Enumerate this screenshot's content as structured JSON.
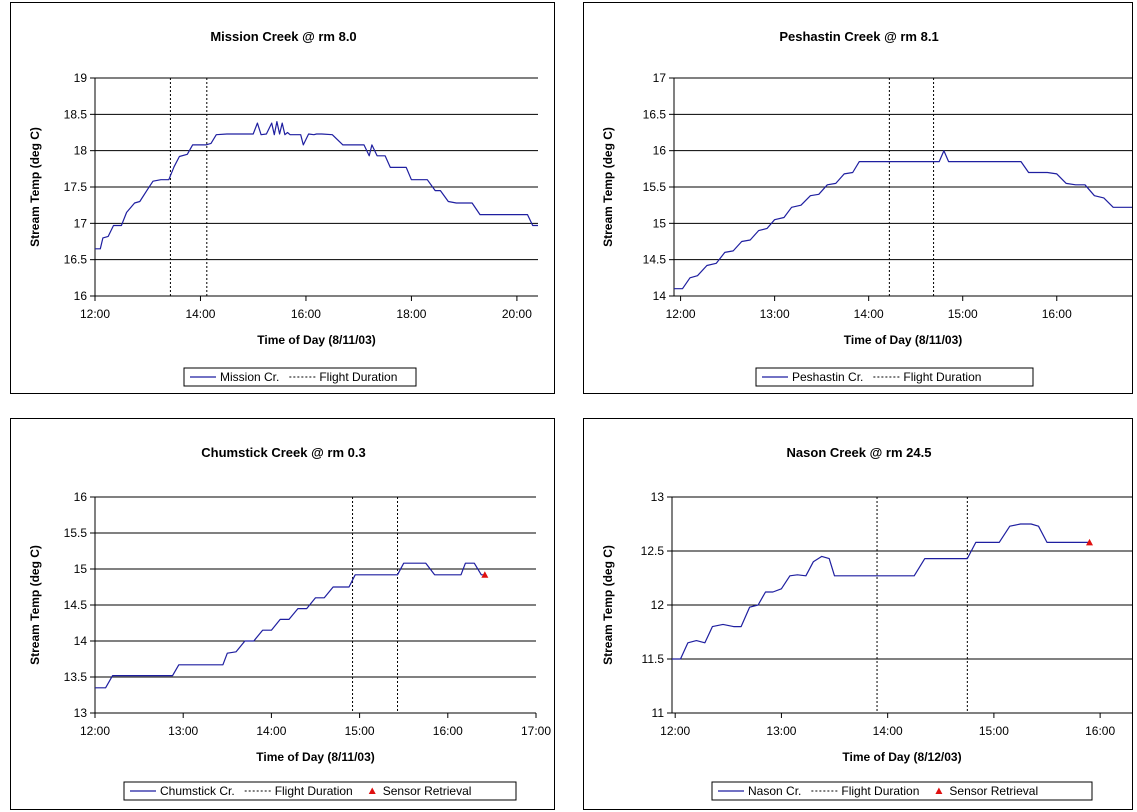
{
  "chart_data": [
    {
      "type": "line",
      "title": "Mission Creek @ rm 8.0",
      "xlabel": "Time of Day (8/11/03)",
      "ylabel": "Stream Temp (deg C)",
      "xlim": [
        12.0,
        20.4
      ],
      "ylim": [
        16,
        19
      ],
      "xticks": [
        12,
        14,
        16,
        18,
        20
      ],
      "xtick_labels": [
        "12:00",
        "14:00",
        "16:00",
        "18:00",
        "20:00"
      ],
      "yticks": [
        16,
        16.5,
        17,
        17.5,
        18,
        18.5,
        19
      ],
      "ytick_labels": [
        "16",
        "16.5",
        "17",
        "17.5",
        "18",
        "18.5",
        "19"
      ],
      "grid": true,
      "flight_duration": [
        13.43,
        14.12
      ],
      "series": [
        {
          "name": "Mission Cr.",
          "color": "#1f1fa0",
          "x": [
            12.0,
            12.1,
            12.15,
            12.25,
            12.35,
            12.5,
            12.6,
            12.75,
            12.85,
            13.0,
            13.1,
            13.25,
            13.4,
            13.5,
            13.6,
            13.75,
            13.85,
            14.0,
            14.1,
            14.2,
            14.3,
            14.5,
            14.7,
            14.9,
            15.0,
            15.08,
            15.15,
            15.25,
            15.35,
            15.4,
            15.45,
            15.5,
            15.55,
            15.6,
            15.65,
            15.7,
            15.8,
            15.9,
            15.95,
            16.05,
            16.15,
            16.2,
            16.3,
            16.5,
            16.7,
            16.8,
            17.0,
            17.1,
            17.2,
            17.25,
            17.35,
            17.5,
            17.6,
            17.75,
            17.9,
            18.0,
            18.15,
            18.3,
            18.45,
            18.55,
            18.7,
            18.85,
            19.0,
            19.15,
            19.3,
            19.5,
            19.7,
            19.85,
            20.0,
            20.2,
            20.3,
            20.4
          ],
          "y": [
            16.65,
            16.65,
            16.8,
            16.82,
            16.97,
            16.97,
            17.15,
            17.28,
            17.3,
            17.47,
            17.58,
            17.6,
            17.6,
            17.78,
            17.92,
            17.95,
            18.08,
            18.08,
            18.08,
            18.1,
            18.22,
            18.23,
            18.23,
            18.23,
            18.23,
            18.38,
            18.22,
            18.23,
            18.38,
            18.22,
            18.4,
            18.23,
            18.38,
            18.22,
            18.25,
            18.22,
            18.22,
            18.22,
            18.08,
            18.23,
            18.22,
            18.23,
            18.23,
            18.22,
            18.08,
            18.08,
            18.08,
            18.08,
            17.93,
            18.08,
            17.93,
            17.93,
            17.77,
            17.77,
            17.77,
            17.6,
            17.6,
            17.6,
            17.45,
            17.45,
            17.3,
            17.28,
            17.28,
            17.28,
            17.12,
            17.12,
            17.12,
            17.12,
            17.12,
            17.12,
            16.97,
            16.97
          ]
        }
      ],
      "legend": [
        "Mission Cr.",
        "Flight Duration"
      ]
    },
    {
      "type": "line",
      "title": "Peshastin Creek @ rm 8.1",
      "xlabel": "Time of Day (8/11/03)",
      "ylabel": "Stream Temp (deg C)",
      "xlim": [
        11.93,
        16.8
      ],
      "ylim": [
        14,
        17
      ],
      "xticks": [
        12,
        13,
        14,
        15,
        16
      ],
      "xtick_labels": [
        "12:00",
        "13:00",
        "14:00",
        "15:00",
        "16:00"
      ],
      "yticks": [
        14,
        14.5,
        15,
        15.5,
        16,
        16.5,
        17
      ],
      "ytick_labels": [
        "14",
        "14.5",
        "15",
        "15.5",
        "16",
        "16.5",
        "17"
      ],
      "grid": true,
      "flight_duration": [
        14.22,
        14.69
      ],
      "series": [
        {
          "name": "Peshastin Cr.",
          "color": "#1f1fa0",
          "x": [
            11.93,
            12.02,
            12.1,
            12.18,
            12.28,
            12.38,
            12.47,
            12.56,
            12.65,
            12.74,
            12.83,
            12.92,
            13.0,
            13.1,
            13.18,
            13.28,
            13.38,
            13.47,
            13.56,
            13.65,
            13.74,
            13.83,
            13.9,
            13.95,
            14.0,
            14.2,
            14.4,
            14.6,
            14.75,
            14.8,
            14.85,
            14.9,
            15.1,
            15.3,
            15.5,
            15.62,
            15.7,
            15.85,
            15.9,
            16.0,
            16.1,
            16.2,
            16.3,
            16.4,
            16.5,
            16.6,
            16.8
          ],
          "y": [
            14.1,
            14.1,
            14.25,
            14.28,
            14.42,
            14.45,
            14.6,
            14.62,
            14.75,
            14.77,
            14.9,
            14.93,
            15.05,
            15.08,
            15.22,
            15.25,
            15.38,
            15.4,
            15.53,
            15.55,
            15.68,
            15.7,
            15.85,
            15.85,
            15.85,
            15.85,
            15.85,
            15.85,
            15.85,
            16.0,
            15.85,
            15.85,
            15.85,
            15.85,
            15.85,
            15.85,
            15.7,
            15.7,
            15.7,
            15.68,
            15.55,
            15.53,
            15.53,
            15.38,
            15.35,
            15.22,
            15.22
          ]
        }
      ],
      "legend": [
        "Peshastin Cr.",
        "Flight Duration"
      ]
    },
    {
      "type": "line",
      "title": "Chumstick Creek @ rm 0.3",
      "xlabel": "Time of Day (8/11/03)",
      "ylabel": "Stream Temp (deg C)",
      "xlim": [
        12,
        17
      ],
      "ylim": [
        13,
        16
      ],
      "xticks": [
        12,
        13,
        14,
        15,
        16,
        17
      ],
      "xtick_labels": [
        "12:00",
        "13:00",
        "14:00",
        "15:00",
        "16:00",
        "17:00"
      ],
      "yticks": [
        13,
        13.5,
        14,
        14.5,
        15,
        15.5,
        16
      ],
      "ytick_labels": [
        "13",
        "13.5",
        "14",
        "14.5",
        "15",
        "15.5",
        "16"
      ],
      "grid": true,
      "flight_duration": [
        14.92,
        15.43
      ],
      "series": [
        {
          "name": "Chumstick Cr.",
          "color": "#1f1fa0",
          "x": [
            12.0,
            12.12,
            12.2,
            12.3,
            12.5,
            12.7,
            12.88,
            12.95,
            13.1,
            13.3,
            13.45,
            13.5,
            13.6,
            13.7,
            13.8,
            13.9,
            14.0,
            14.1,
            14.2,
            14.3,
            14.4,
            14.5,
            14.6,
            14.7,
            14.78,
            14.88,
            14.95,
            15.1,
            15.3,
            15.43,
            15.5,
            15.6,
            15.75,
            15.85,
            15.95,
            16.05,
            16.15,
            16.2,
            16.3,
            16.38,
            16.42
          ],
          "y": [
            13.35,
            13.35,
            13.52,
            13.52,
            13.52,
            13.52,
            13.52,
            13.67,
            13.67,
            13.67,
            13.67,
            13.83,
            13.85,
            14.0,
            14.0,
            14.15,
            14.15,
            14.3,
            14.3,
            14.45,
            14.45,
            14.6,
            14.6,
            14.75,
            14.75,
            14.75,
            14.92,
            14.92,
            14.92,
            14.92,
            15.08,
            15.08,
            15.08,
            14.92,
            14.92,
            14.92,
            14.92,
            15.08,
            15.08,
            14.92,
            14.92
          ]
        }
      ],
      "markers": {
        "name": "Sensor Retrieval",
        "color": "#e01010",
        "x": [
          16.42
        ],
        "y": [
          14.92
        ]
      },
      "legend": [
        "Chumstick Cr.",
        "Flight Duration",
        "Sensor Retrieval"
      ]
    },
    {
      "type": "line",
      "title": "Nason Creek @ rm 24.5",
      "xlabel": "Time of Day (8/12/03)",
      "ylabel": "Stream Temp (deg C)",
      "xlim": [
        11.97,
        16.3
      ],
      "ylim": [
        11,
        13
      ],
      "xticks": [
        12,
        13,
        14,
        15,
        16
      ],
      "xtick_labels": [
        "12:00",
        "13:00",
        "14:00",
        "15:00",
        "16:00"
      ],
      "yticks": [
        11,
        11.5,
        12,
        12.5,
        13
      ],
      "ytick_labels": [
        "11",
        "11.5",
        "12",
        "12.5",
        "13"
      ],
      "grid": true,
      "flight_duration": [
        13.9,
        14.75
      ],
      "series": [
        {
          "name": "Nason Cr.",
          "color": "#1f1fa0",
          "x": [
            11.97,
            12.05,
            12.12,
            12.2,
            12.28,
            12.35,
            12.45,
            12.55,
            12.62,
            12.7,
            12.78,
            12.85,
            12.92,
            13.0,
            13.08,
            13.15,
            13.23,
            13.3,
            13.38,
            13.45,
            13.5,
            13.57,
            13.65,
            13.8,
            14.0,
            14.15,
            14.25,
            14.35,
            14.45,
            14.6,
            14.75,
            14.83,
            14.95,
            15.05,
            15.15,
            15.25,
            15.35,
            15.42,
            15.5,
            15.6,
            15.75,
            15.9
          ],
          "y": [
            11.5,
            11.5,
            11.65,
            11.67,
            11.65,
            11.8,
            11.82,
            11.8,
            11.8,
            11.98,
            12.0,
            12.12,
            12.12,
            12.15,
            12.27,
            12.28,
            12.27,
            12.4,
            12.45,
            12.43,
            12.27,
            12.27,
            12.27,
            12.27,
            12.27,
            12.27,
            12.27,
            12.43,
            12.43,
            12.43,
            12.43,
            12.58,
            12.58,
            12.58,
            12.73,
            12.75,
            12.75,
            12.73,
            12.58,
            12.58,
            12.58,
            12.58
          ]
        }
      ],
      "markers": {
        "name": "Sensor Retrieval",
        "color": "#e01010",
        "x": [
          15.9
        ],
        "y": [
          12.58
        ]
      },
      "legend": [
        "Nason Cr.",
        "Flight Duration",
        "Sensor Retrieval"
      ]
    }
  ]
}
